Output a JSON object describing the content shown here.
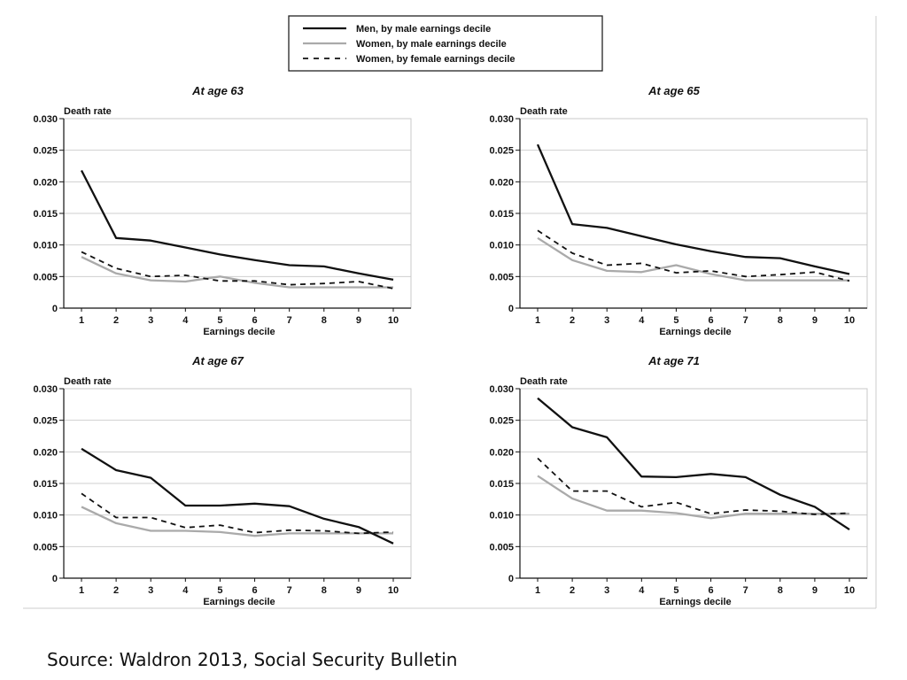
{
  "legend": {
    "entries": [
      {
        "label": "Men, by male earnings decile",
        "style": "solid",
        "color": "#111111"
      },
      {
        "label": "Women, by male earnings decile",
        "style": "solid",
        "color": "#aaaaaa"
      },
      {
        "label": "Women, by female earnings decile",
        "style": "dashed",
        "color": "#111111"
      }
    ]
  },
  "caption": "Source: Waldron 2013, Social Security Bulletin",
  "chart_data": [
    {
      "type": "line",
      "title": "At age 63",
      "ylabel": "Death rate",
      "xlabel": "Earnings decile",
      "x": [
        1,
        2,
        3,
        4,
        5,
        6,
        7,
        8,
        9,
        10
      ],
      "ylim": [
        0,
        0.03
      ],
      "yticks": [
        "0",
        "0.005",
        "0.010",
        "0.015",
        "0.020",
        "0.025",
        "0.030"
      ],
      "grid": true,
      "series": [
        {
          "name": "Men, by male earnings decile",
          "values": [
            0.0218,
            0.0111,
            0.0107,
            0.0096,
            0.0085,
            0.0076,
            0.0068,
            0.0066,
            0.0055,
            0.0045
          ]
        },
        {
          "name": "Women, by male earnings decile",
          "values": [
            0.0081,
            0.0055,
            0.0044,
            0.0042,
            0.005,
            0.004,
            0.0033,
            0.0033,
            0.0033,
            0.0033
          ]
        },
        {
          "name": "Women, by female earnings decile",
          "values": [
            0.0089,
            0.0063,
            0.005,
            0.0052,
            0.0043,
            0.0043,
            0.0037,
            0.0039,
            0.0042,
            0.0031
          ]
        }
      ]
    },
    {
      "type": "line",
      "title": "At age 65",
      "ylabel": "Death rate",
      "xlabel": "Earnings decile",
      "x": [
        1,
        2,
        3,
        4,
        5,
        6,
        7,
        8,
        9,
        10
      ],
      "ylim": [
        0,
        0.03
      ],
      "yticks": [
        "0",
        "0.005",
        "0.010",
        "0.015",
        "0.020",
        "0.025",
        "0.030"
      ],
      "grid": true,
      "series": [
        {
          "name": "Men, by male earnings decile",
          "values": [
            0.0259,
            0.0133,
            0.0127,
            0.0114,
            0.0101,
            0.009,
            0.0081,
            0.0079,
            0.0066,
            0.0054
          ]
        },
        {
          "name": "Women, by male earnings decile",
          "values": [
            0.0111,
            0.0076,
            0.0059,
            0.0057,
            0.0068,
            0.0054,
            0.0044,
            0.0044,
            0.0044,
            0.0044
          ]
        },
        {
          "name": "Women, by female earnings decile",
          "values": [
            0.0123,
            0.0087,
            0.0068,
            0.0071,
            0.0056,
            0.0059,
            0.005,
            0.0053,
            0.0057,
            0.0043
          ]
        }
      ]
    },
    {
      "type": "line",
      "title": "At age 67",
      "ylabel": "Death rate",
      "xlabel": "Earnings decile",
      "x": [
        1,
        2,
        3,
        4,
        5,
        6,
        7,
        8,
        9,
        10
      ],
      "ylim": [
        0,
        0.03
      ],
      "yticks": [
        "0",
        "0.005",
        "0.010",
        "0.015",
        "0.020",
        "0.025",
        "0.030"
      ],
      "grid": true,
      "series": [
        {
          "name": "Men, by male earnings decile",
          "values": [
            0.0205,
            0.0171,
            0.0159,
            0.0115,
            0.0115,
            0.0118,
            0.0114,
            0.0094,
            0.0081,
            0.0055
          ]
        },
        {
          "name": "Women, by male earnings decile",
          "values": [
            0.0113,
            0.0087,
            0.0075,
            0.0075,
            0.0073,
            0.0067,
            0.0071,
            0.0071,
            0.0071,
            0.0071
          ]
        },
        {
          "name": "Women, by female earnings decile",
          "values": [
            0.0134,
            0.0096,
            0.0096,
            0.008,
            0.0084,
            0.0072,
            0.0076,
            0.0075,
            0.0071,
            0.0073
          ]
        }
      ]
    },
    {
      "type": "line",
      "title": "At age 71",
      "ylabel": "Death rate",
      "xlabel": "Earnings decile",
      "x": [
        1,
        2,
        3,
        4,
        5,
        6,
        7,
        8,
        9,
        10
      ],
      "ylim": [
        0,
        0.03
      ],
      "yticks": [
        "0",
        "0.005",
        "0.010",
        "0.015",
        "0.020",
        "0.025",
        "0.030"
      ],
      "grid": true,
      "series": [
        {
          "name": "Men, by male earnings decile",
          "values": [
            0.0285,
            0.0239,
            0.0223,
            0.0161,
            0.016,
            0.0165,
            0.016,
            0.0132,
            0.0113,
            0.0077
          ]
        },
        {
          "name": "Women, by male earnings decile",
          "values": [
            0.0162,
            0.0126,
            0.0107,
            0.0107,
            0.0103,
            0.0095,
            0.0102,
            0.0102,
            0.0102,
            0.0102
          ]
        },
        {
          "name": "Women, by female earnings decile",
          "values": [
            0.019,
            0.0138,
            0.0138,
            0.0113,
            0.012,
            0.0102,
            0.0108,
            0.0106,
            0.0101,
            0.0103
          ]
        }
      ]
    }
  ]
}
